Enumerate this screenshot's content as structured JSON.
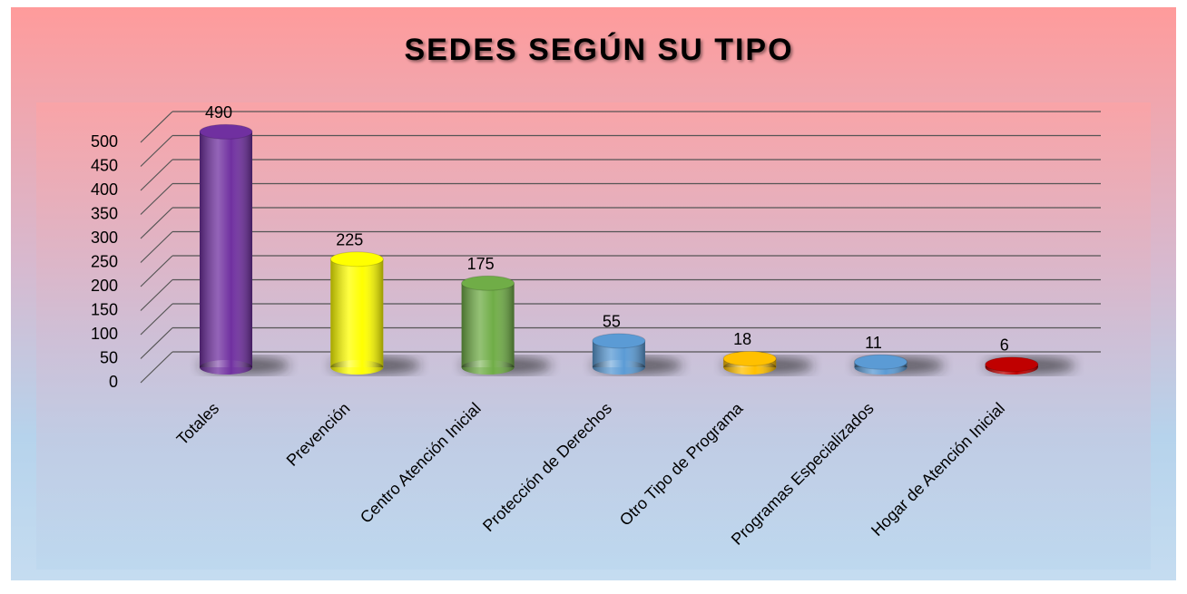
{
  "chart_data": {
    "type": "bar",
    "title": "SEDES SEGÚN SU TIPO",
    "categories": [
      "Totales",
      "Prevención",
      "Centro Atención Inicial",
      "Protección de Derechos",
      "Otro Tipo de Programa",
      "Programas Especializados",
      "Hogar de Atención Inicial"
    ],
    "values": [
      490,
      225,
      175,
      55,
      18,
      11,
      6
    ],
    "colors": [
      "#7030a0",
      "#ffff00",
      "#70ad47",
      "#5b9bd5",
      "#ffc000",
      "#5b9bd5",
      "#c00000"
    ],
    "ylim": [
      0,
      500
    ],
    "yticks": [
      0,
      50,
      100,
      150,
      200,
      250,
      300,
      350,
      400,
      450,
      500
    ],
    "grid": true
  }
}
